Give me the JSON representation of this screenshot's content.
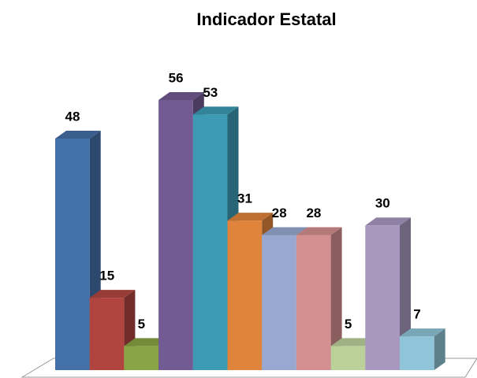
{
  "chart_data": {
    "type": "bar3d",
    "title": "Indicador Estatal",
    "values": [
      48,
      15,
      5,
      56,
      53,
      31,
      28,
      28,
      5,
      30,
      7
    ],
    "colors": [
      "#4470a8",
      "#b04540",
      "#88a444",
      "#725a92",
      "#3c9ab4",
      "#e0843c",
      "#98a8d0",
      "#d49090",
      "#bcd09a",
      "#a898c0",
      "#90c4d8"
    ]
  }
}
